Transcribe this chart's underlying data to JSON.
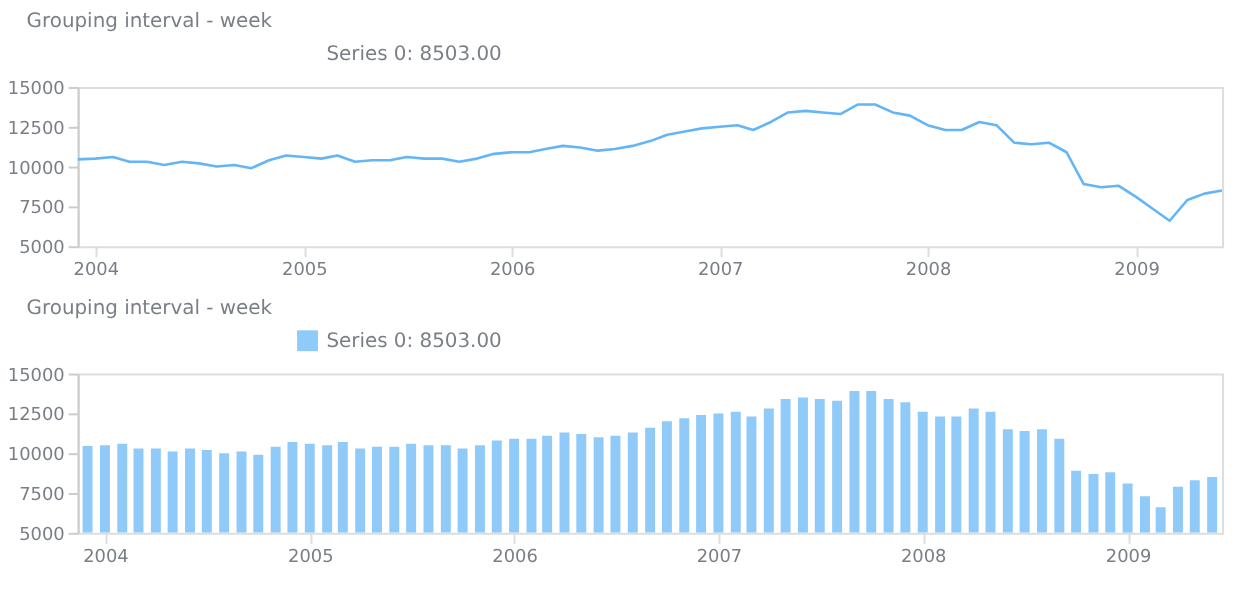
{
  "chart_data": [
    {
      "type": "line",
      "title": "Grouping interval - week",
      "legend": "top left",
      "grid": false,
      "x": [
        "2003-12",
        "2004-01",
        "2004-02",
        "2004-03",
        "2004-04",
        "2004-05",
        "2004-06",
        "2004-07",
        "2004-08",
        "2004-09",
        "2004-10",
        "2004-11",
        "2004-12",
        "2005-01",
        "2005-02",
        "2005-03",
        "2005-04",
        "2005-05",
        "2005-06",
        "2005-07",
        "2005-08",
        "2005-09",
        "2005-10",
        "2005-11",
        "2005-12",
        "2006-01",
        "2006-02",
        "2006-03",
        "2006-04",
        "2006-05",
        "2006-06",
        "2006-07",
        "2006-08",
        "2006-09",
        "2006-10",
        "2006-11",
        "2006-12",
        "2007-01",
        "2007-02",
        "2007-03",
        "2007-04",
        "2007-05",
        "2007-06",
        "2007-07",
        "2007-08",
        "2007-09",
        "2007-10",
        "2007-11",
        "2007-12",
        "2008-01",
        "2008-02",
        "2008-03",
        "2008-04",
        "2008-05",
        "2008-06",
        "2008-07",
        "2008-08",
        "2008-09",
        "2008-10",
        "2008-11",
        "2008-12",
        "2009-01",
        "2009-02",
        "2009-03",
        "2009-04",
        "2009-05",
        "2009-06"
      ],
      "series": [
        {
          "name": "Series 0: 8503.00",
          "color": "#64b5f6",
          "values": [
            10450,
            10500,
            10600,
            10300,
            10300,
            10100,
            10300,
            10200,
            10000,
            10100,
            9900,
            10400,
            10700,
            10600,
            10500,
            10700,
            10300,
            10400,
            10400,
            10600,
            10500,
            10500,
            10300,
            10500,
            10800,
            10900,
            10900,
            11100,
            11300,
            11200,
            11000,
            11100,
            11300,
            11600,
            12000,
            12200,
            12400,
            12500,
            12600,
            12300,
            12800,
            13400,
            13500,
            13400,
            13300,
            13900,
            13900,
            13400,
            13200,
            12600,
            12300,
            12300,
            12800,
            12600,
            11500,
            11400,
            11500,
            10900,
            8900,
            8700,
            8800,
            8100,
            7300,
            6600,
            7900,
            8300,
            8503
          ]
        }
      ],
      "xlim": [
        "2003-12",
        "2009-06"
      ],
      "xticks": [
        {
          "value": "2004-01",
          "label": "2004"
        },
        {
          "value": "2005-01",
          "label": "2005"
        },
        {
          "value": "2006-01",
          "label": "2006"
        },
        {
          "value": "2007-01",
          "label": "2007"
        },
        {
          "value": "2008-01",
          "label": "2008"
        },
        {
          "value": "2009-01",
          "label": "2009"
        }
      ],
      "ylim": [
        5000,
        15000
      ],
      "yticks": [
        5000,
        7500,
        10000,
        12500,
        15000
      ]
    },
    {
      "type": "bar",
      "title": "Grouping interval - week",
      "legend": "top left",
      "grid": false,
      "x": [
        "2003-12",
        "2004-01",
        "2004-02",
        "2004-03",
        "2004-04",
        "2004-05",
        "2004-06",
        "2004-07",
        "2004-08",
        "2004-09",
        "2004-10",
        "2004-11",
        "2004-12",
        "2005-01",
        "2005-02",
        "2005-03",
        "2005-04",
        "2005-05",
        "2005-06",
        "2005-07",
        "2005-08",
        "2005-09",
        "2005-10",
        "2005-11",
        "2005-12",
        "2006-01",
        "2006-02",
        "2006-03",
        "2006-04",
        "2006-05",
        "2006-06",
        "2006-07",
        "2006-08",
        "2006-09",
        "2006-10",
        "2006-11",
        "2006-12",
        "2007-01",
        "2007-02",
        "2007-03",
        "2007-04",
        "2007-05",
        "2007-06",
        "2007-07",
        "2007-08",
        "2007-09",
        "2007-10",
        "2007-11",
        "2007-12",
        "2008-01",
        "2008-02",
        "2008-03",
        "2008-04",
        "2008-05",
        "2008-06",
        "2008-07",
        "2008-08",
        "2008-09",
        "2008-10",
        "2008-11",
        "2008-12",
        "2009-01",
        "2009-02",
        "2009-03",
        "2009-04",
        "2009-05",
        "2009-06"
      ],
      "series": [
        {
          "name": "Series 0: 8503.00",
          "color": "#90caf9",
          "values": [
            10450,
            10500,
            10600,
            10300,
            10300,
            10100,
            10300,
            10200,
            10000,
            10100,
            9900,
            10400,
            10700,
            10600,
            10500,
            10700,
            10300,
            10400,
            10400,
            10600,
            10500,
            10500,
            10300,
            10500,
            10800,
            10900,
            10900,
            11100,
            11300,
            11200,
            11000,
            11100,
            11300,
            11600,
            12000,
            12200,
            12400,
            12500,
            12600,
            12300,
            12800,
            13400,
            13500,
            13400,
            13300,
            13900,
            13900,
            13400,
            13200,
            12600,
            12300,
            12300,
            12800,
            12600,
            11500,
            11400,
            11500,
            10900,
            8900,
            8700,
            8800,
            8100,
            7300,
            6600,
            7900,
            8300,
            8503
          ]
        }
      ],
      "xlim": [
        "2003-12",
        "2009-06"
      ],
      "xticks": [
        {
          "value": "2004-01",
          "label": "2004"
        },
        {
          "value": "2005-01",
          "label": "2005"
        },
        {
          "value": "2006-01",
          "label": "2006"
        },
        {
          "value": "2007-01",
          "label": "2007"
        },
        {
          "value": "2008-01",
          "label": "2008"
        },
        {
          "value": "2009-01",
          "label": "2009"
        }
      ],
      "ylim": [
        5000,
        15000
      ],
      "yticks": [
        5000,
        7500,
        10000,
        12500,
        15000
      ]
    }
  ]
}
